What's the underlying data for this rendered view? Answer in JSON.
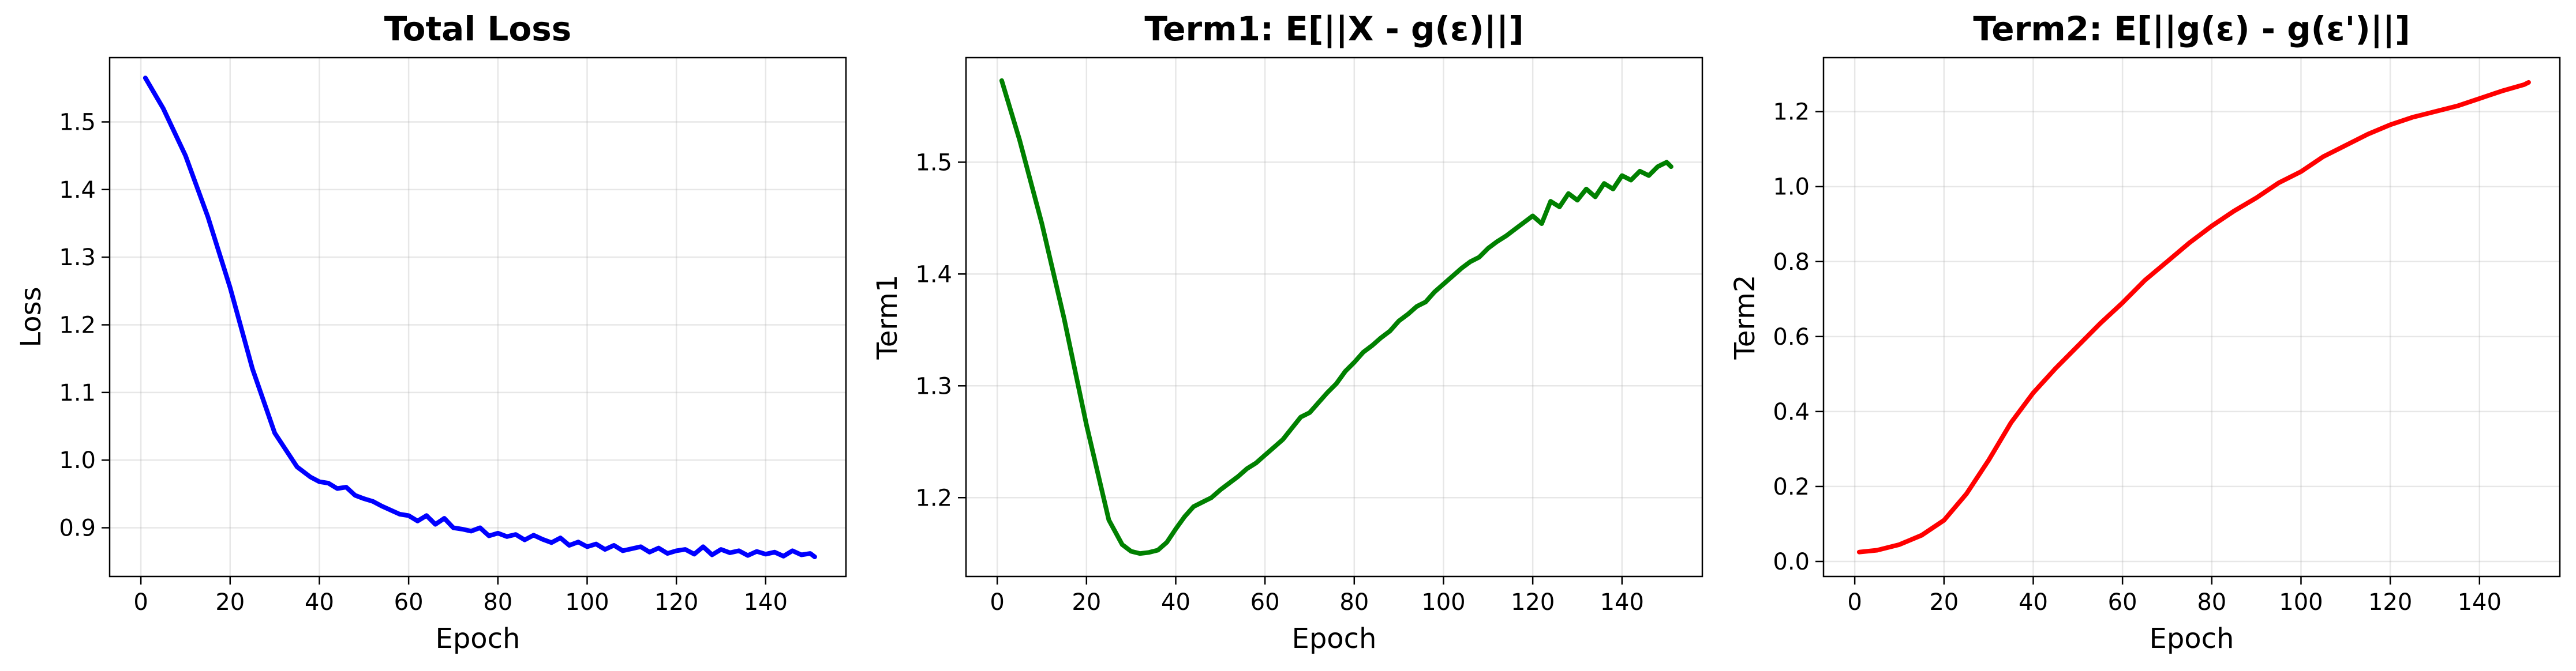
{
  "chart_data": [
    {
      "type": "line",
      "title": "Total Loss",
      "xlabel": "Epoch",
      "ylabel": "Loss",
      "color": "#0000ff",
      "xlim": [
        -7,
        158
      ],
      "ylim": [
        0.828,
        1.595
      ],
      "xticks": [
        0,
        20,
        40,
        60,
        80,
        100,
        120,
        140
      ],
      "yticks": [
        0.9,
        1.0,
        1.1,
        1.2,
        1.3,
        1.4,
        1.5
      ],
      "ytick_labels": [
        "0.9",
        "1.0",
        "1.1",
        "1.2",
        "1.3",
        "1.4",
        "1.5"
      ],
      "grid": true,
      "series": [
        {
          "x": [
            1,
            5,
            10,
            15,
            20,
            25,
            30,
            35,
            38,
            40,
            42,
            44,
            46,
            48,
            50,
            52,
            54,
            56,
            58,
            60,
            62,
            64,
            66,
            68,
            70,
            72,
            74,
            76,
            78,
            80,
            82,
            84,
            86,
            88,
            90,
            92,
            94,
            96,
            98,
            100,
            102,
            104,
            106,
            108,
            110,
            112,
            114,
            116,
            118,
            120,
            122,
            124,
            126,
            128,
            130,
            132,
            134,
            136,
            138,
            140,
            142,
            144,
            146,
            148,
            150,
            151
          ],
          "y": [
            1.565,
            1.52,
            1.45,
            1.36,
            1.255,
            1.135,
            1.04,
            0.99,
            0.975,
            0.968,
            0.966,
            0.958,
            0.96,
            0.948,
            0.943,
            0.939,
            0.932,
            0.926,
            0.92,
            0.918,
            0.91,
            0.918,
            0.905,
            0.914,
            0.9,
            0.898,
            0.895,
            0.9,
            0.888,
            0.892,
            0.887,
            0.89,
            0.882,
            0.889,
            0.883,
            0.878,
            0.885,
            0.874,
            0.879,
            0.872,
            0.876,
            0.868,
            0.874,
            0.866,
            0.869,
            0.872,
            0.864,
            0.87,
            0.862,
            0.866,
            0.868,
            0.861,
            0.872,
            0.86,
            0.868,
            0.863,
            0.866,
            0.859,
            0.865,
            0.861,
            0.864,
            0.858,
            0.866,
            0.86,
            0.862,
            0.857
          ]
        }
      ]
    },
    {
      "type": "line",
      "title": "Term1: E[||X - g(ε)||]",
      "xlabel": "Epoch",
      "ylabel": "Term1",
      "color": "#008000",
      "xlim": [
        -7,
        158
      ],
      "ylim": [
        1.1295,
        1.5935
      ],
      "xticks": [
        0,
        20,
        40,
        60,
        80,
        100,
        120,
        140
      ],
      "yticks": [
        1.2,
        1.3,
        1.4,
        1.5
      ],
      "ytick_labels": [
        "1.2",
        "1.3",
        "1.4",
        "1.5"
      ],
      "grid": true,
      "series": [
        {
          "x": [
            1,
            5,
            10,
            15,
            20,
            25,
            28,
            30,
            32,
            34,
            36,
            38,
            40,
            42,
            44,
            46,
            48,
            50,
            52,
            54,
            56,
            58,
            60,
            62,
            64,
            66,
            68,
            70,
            72,
            74,
            76,
            78,
            80,
            82,
            84,
            86,
            88,
            90,
            92,
            94,
            96,
            98,
            100,
            102,
            104,
            106,
            108,
            110,
            112,
            114,
            116,
            118,
            120,
            122,
            124,
            126,
            128,
            130,
            132,
            134,
            136,
            138,
            140,
            142,
            144,
            146,
            148,
            150,
            151
          ],
          "y": [
            1.573,
            1.52,
            1.445,
            1.36,
            1.265,
            1.18,
            1.158,
            1.152,
            1.15,
            1.151,
            1.153,
            1.16,
            1.172,
            1.183,
            1.192,
            1.196,
            1.2,
            1.207,
            1.213,
            1.219,
            1.226,
            1.231,
            1.238,
            1.245,
            1.252,
            1.262,
            1.272,
            1.276,
            1.285,
            1.294,
            1.302,
            1.313,
            1.321,
            1.33,
            1.336,
            1.343,
            1.349,
            1.358,
            1.364,
            1.371,
            1.375,
            1.384,
            1.391,
            1.398,
            1.405,
            1.411,
            1.415,
            1.423,
            1.429,
            1.434,
            1.44,
            1.446,
            1.452,
            1.445,
            1.465,
            1.46,
            1.472,
            1.466,
            1.476,
            1.469,
            1.481,
            1.476,
            1.488,
            1.484,
            1.492,
            1.488,
            1.496,
            1.5,
            1.496
          ]
        }
      ]
    },
    {
      "type": "line",
      "title": "Term2: E[||g(ε) - g(ε')||]",
      "xlabel": "Epoch",
      "ylabel": "Term2",
      "color": "#ff0000",
      "xlim": [
        -7,
        158
      ],
      "ylim": [
        -0.04,
        1.344
      ],
      "xticks": [
        0,
        20,
        40,
        60,
        80,
        100,
        120,
        140
      ],
      "yticks": [
        0.0,
        0.2,
        0.4,
        0.6,
        0.8,
        1.0,
        1.2
      ],
      "ytick_labels": [
        "0.0",
        "0.2",
        "0.4",
        "0.6",
        "0.8",
        "1.0",
        "1.2"
      ],
      "grid": true,
      "series": [
        {
          "x": [
            1,
            5,
            10,
            15,
            20,
            25,
            30,
            35,
            40,
            45,
            50,
            55,
            60,
            65,
            70,
            75,
            80,
            85,
            90,
            95,
            100,
            105,
            110,
            115,
            120,
            125,
            130,
            135,
            140,
            145,
            150,
            151
          ],
          "y": [
            0.025,
            0.03,
            0.045,
            0.07,
            0.11,
            0.18,
            0.27,
            0.37,
            0.45,
            0.515,
            0.575,
            0.635,
            0.69,
            0.75,
            0.8,
            0.85,
            0.895,
            0.935,
            0.97,
            1.01,
            1.04,
            1.08,
            1.11,
            1.14,
            1.165,
            1.185,
            1.2,
            1.215,
            1.235,
            1.255,
            1.272,
            1.278
          ]
        }
      ]
    }
  ]
}
